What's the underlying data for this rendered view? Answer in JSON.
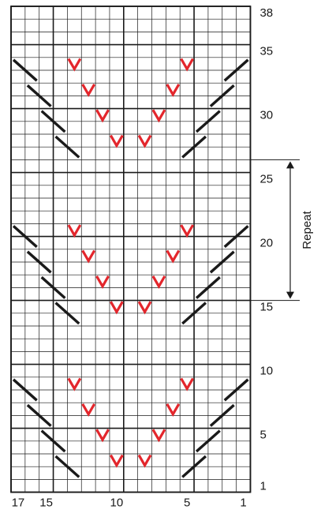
{
  "chart": {
    "columns": 17,
    "rows": 38,
    "row_labels": [
      "38",
      "35",
      "30",
      "25",
      "20",
      "15",
      "10",
      "5",
      "1"
    ],
    "row_label_rows": [
      38,
      35,
      30,
      25,
      20,
      15,
      10,
      5,
      1
    ],
    "col_labels": [
      "17",
      "15",
      "10",
      "5",
      "1"
    ],
    "col_label_cols": [
      17,
      15,
      10,
      5,
      1
    ],
    "major_rows": [
      38,
      35,
      30,
      25,
      20,
      15,
      10,
      5,
      1
    ],
    "major_cols": [
      17,
      15,
      10,
      5,
      1
    ],
    "repeat": {
      "label": "Repeat",
      "from_row": 15,
      "to_row": 26
    },
    "colors": {
      "grid": "#1a1a1a",
      "slant": "#1a1a1a",
      "vee": "#e3262c"
    },
    "symbols": {
      "slant_left": [
        {
          "col": 17,
          "row": 34
        },
        {
          "col": 16,
          "row": 32
        },
        {
          "col": 15,
          "row": 30
        },
        {
          "col": 14,
          "row": 28
        },
        {
          "col": 17,
          "row": 21
        },
        {
          "col": 16,
          "row": 19
        },
        {
          "col": 15,
          "row": 17
        },
        {
          "col": 14,
          "row": 15
        },
        {
          "col": 17,
          "row": 9
        },
        {
          "col": 16,
          "row": 7
        },
        {
          "col": 15,
          "row": 5
        },
        {
          "col": 14,
          "row": 3
        }
      ],
      "slant_right": [
        {
          "col": 1,
          "row": 34
        },
        {
          "col": 2,
          "row": 32
        },
        {
          "col": 3,
          "row": 30
        },
        {
          "col": 4,
          "row": 28
        },
        {
          "col": 1,
          "row": 21
        },
        {
          "col": 2,
          "row": 19
        },
        {
          "col": 3,
          "row": 17
        },
        {
          "col": 4,
          "row": 15
        },
        {
          "col": 1,
          "row": 9
        },
        {
          "col": 2,
          "row": 7
        },
        {
          "col": 3,
          "row": 5
        },
        {
          "col": 4,
          "row": 3
        }
      ],
      "vee": [
        {
          "col": 13,
          "row": 34
        },
        {
          "col": 12,
          "row": 32
        },
        {
          "col": 11,
          "row": 30
        },
        {
          "col": 10,
          "row": 28
        },
        {
          "col": 8,
          "row": 28
        },
        {
          "col": 7,
          "row": 30
        },
        {
          "col": 6,
          "row": 32
        },
        {
          "col": 5,
          "row": 34
        },
        {
          "col": 13,
          "row": 21
        },
        {
          "col": 12,
          "row": 19
        },
        {
          "col": 11,
          "row": 17
        },
        {
          "col": 10,
          "row": 15
        },
        {
          "col": 8,
          "row": 15
        },
        {
          "col": 7,
          "row": 17
        },
        {
          "col": 6,
          "row": 19
        },
        {
          "col": 5,
          "row": 21
        },
        {
          "col": 13,
          "row": 9
        },
        {
          "col": 12,
          "row": 7
        },
        {
          "col": 11,
          "row": 5
        },
        {
          "col": 10,
          "row": 3
        },
        {
          "col": 8,
          "row": 3
        },
        {
          "col": 7,
          "row": 5
        },
        {
          "col": 6,
          "row": 7
        },
        {
          "col": 5,
          "row": 9
        }
      ]
    }
  }
}
